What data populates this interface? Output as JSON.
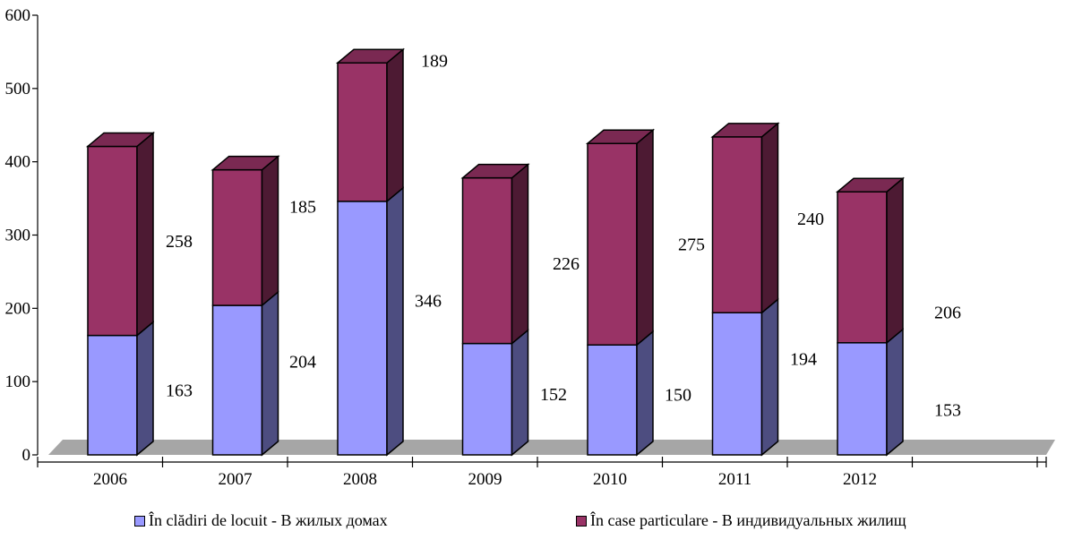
{
  "chart_data": {
    "type": "bar",
    "stacked": true,
    "three_d": true,
    "categories": [
      "2006",
      "2007",
      "2008",
      "2009",
      "2010",
      "2011",
      "2012"
    ],
    "series": [
      {
        "name": "În clădiri de locuit - В жилых домах",
        "values": [
          163,
          204,
          346,
          152,
          150,
          194,
          153
        ]
      },
      {
        "name": "În case particulare - В индивидуальных жилищ",
        "values": [
          258,
          185,
          189,
          226,
          275,
          240,
          206
        ]
      }
    ],
    "ylim": [
      0,
      600
    ],
    "yticks": [
      0,
      100,
      200,
      300,
      400,
      500,
      600
    ],
    "xlabel": "",
    "ylabel": "",
    "title": "",
    "grid": false,
    "legend_position": "bottom",
    "colors": {
      "series1_front": "#9999ff",
      "series1_side": "#4d4d80",
      "series2_front": "#993366",
      "series2_side": "#4d1a33",
      "series2_top": "#7a2952",
      "floor": "#a6a6a6",
      "outline": "#000000"
    }
  }
}
